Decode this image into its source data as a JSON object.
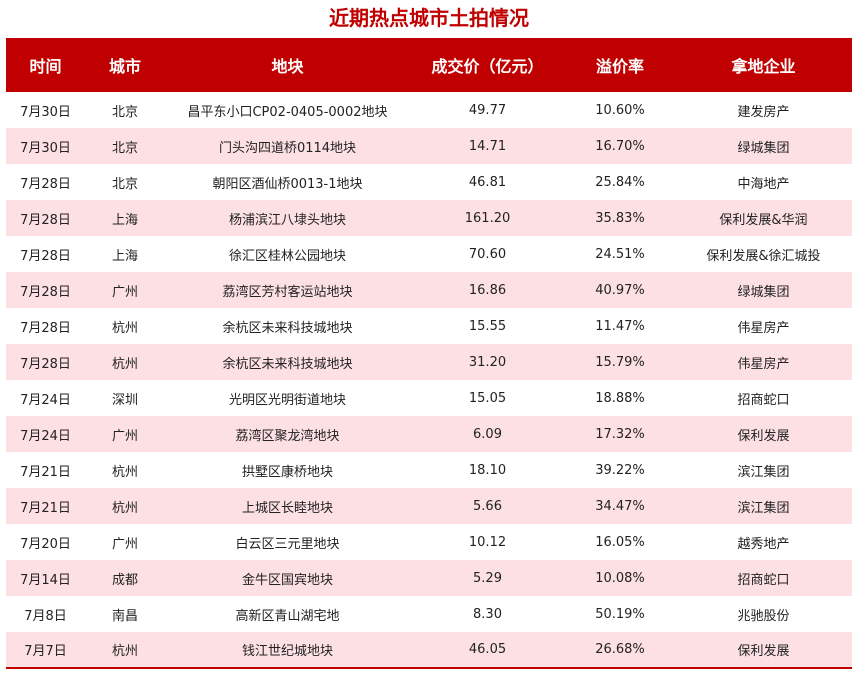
{
  "colors": {
    "accent": "#c00000",
    "header_text": "#ffffff",
    "row_stripe": "#fde0e3",
    "row_plain": "#ffffff"
  },
  "chart_data": {
    "type": "table",
    "title": "近期热点城市土拍情况",
    "columns": [
      "时间",
      "城市",
      "地块",
      "成交价（亿元）",
      "溢价率",
      "拿地企业"
    ],
    "rows": [
      [
        "7月30日",
        "北京",
        "昌平东小口CP02-0405-0002地块",
        "49.77",
        "10.60%",
        "建发房产"
      ],
      [
        "7月30日",
        "北京",
        "门头沟四道桥0114地块",
        "14.71",
        "16.70%",
        "绿城集团"
      ],
      [
        "7月28日",
        "北京",
        "朝阳区酒仙桥0013-1地块",
        "46.81",
        "25.84%",
        "中海地产"
      ],
      [
        "7月28日",
        "上海",
        "杨浦滨江八埭头地块",
        "161.20",
        "35.83%",
        "保利发展&华润"
      ],
      [
        "7月28日",
        "上海",
        "徐汇区桂林公园地块",
        "70.60",
        "24.51%",
        "保利发展&徐汇城投"
      ],
      [
        "7月28日",
        "广州",
        "荔湾区芳村客运站地块",
        "16.86",
        "40.97%",
        "绿城集团"
      ],
      [
        "7月28日",
        "杭州",
        "余杭区未来科技城地块",
        "15.55",
        "11.47%",
        "伟星房产"
      ],
      [
        "7月28日",
        "杭州",
        "余杭区未来科技城地块",
        "31.20",
        "15.79%",
        "伟星房产"
      ],
      [
        "7月24日",
        "深圳",
        "光明区光明街道地块",
        "15.05",
        "18.88%",
        "招商蛇口"
      ],
      [
        "7月24日",
        "广州",
        "荔湾区聚龙湾地块",
        "6.09",
        "17.32%",
        "保利发展"
      ],
      [
        "7月21日",
        "杭州",
        "拱墅区康桥地块",
        "18.10",
        "39.22%",
        "滨江集团"
      ],
      [
        "7月21日",
        "杭州",
        "上城区长睦地块",
        "5.66",
        "34.47%",
        "滨江集团"
      ],
      [
        "7月20日",
        "广州",
        "白云区三元里地块",
        "10.12",
        "16.05%",
        "越秀地产"
      ],
      [
        "7月14日",
        "成都",
        "金牛区国宾地块",
        "5.29",
        "10.08%",
        "招商蛇口"
      ],
      [
        "7月8日",
        "南昌",
        "高新区青山湖宅地",
        "8.30",
        "50.19%",
        "兆驰股份"
      ],
      [
        "7月7日",
        "杭州",
        "钱江世纪城地块",
        "46.05",
        "26.68%",
        "保利发展"
      ]
    ]
  }
}
